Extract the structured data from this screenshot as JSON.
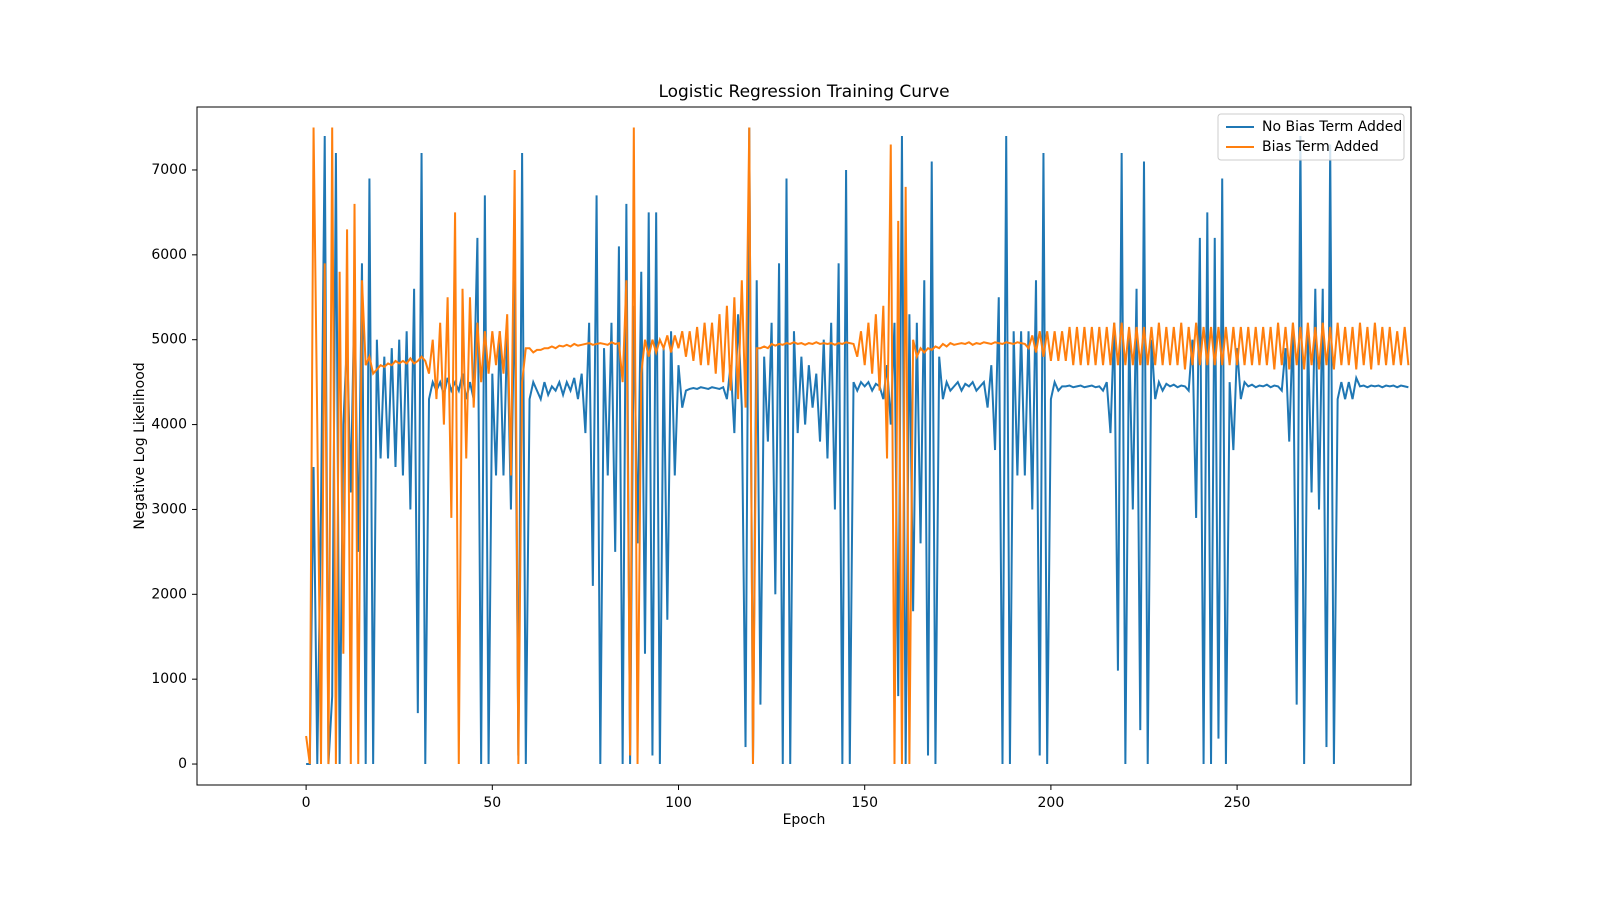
{
  "chart_data": {
    "type": "line",
    "title": "Logistic Regression Training Curve",
    "xlabel": "Epoch",
    "ylabel": "Negative Log Likelihood",
    "x": [
      0,
      1,
      2,
      3,
      4,
      5,
      6,
      7,
      8,
      9,
      10,
      11,
      12,
      13,
      14,
      15,
      16,
      17,
      18,
      19,
      20,
      21,
      22,
      23,
      24,
      25,
      26,
      27,
      28,
      29,
      30,
      31,
      32,
      33,
      34,
      35,
      36,
      37,
      38,
      39,
      40,
      41,
      42,
      43,
      44,
      45,
      46,
      47,
      48,
      49,
      50,
      51,
      52,
      53,
      54,
      55,
      56,
      57,
      58,
      59,
      60,
      61,
      62,
      63,
      64,
      65,
      66,
      67,
      68,
      69,
      70,
      71,
      72,
      73,
      74,
      75,
      76,
      77,
      78,
      79,
      80,
      81,
      82,
      83,
      84,
      85,
      86,
      87,
      88,
      89,
      90,
      91,
      92,
      93,
      94,
      95,
      96,
      97,
      98,
      99,
      100,
      101,
      102,
      103,
      104,
      105,
      106,
      107,
      108,
      109,
      110,
      111,
      112,
      113,
      114,
      115,
      116,
      117,
      118,
      119,
      120,
      121,
      122,
      123,
      124,
      125,
      126,
      127,
      128,
      129,
      130,
      131,
      132,
      133,
      134,
      135,
      136,
      137,
      138,
      139,
      140,
      141,
      142,
      143,
      144,
      145,
      146,
      147,
      148,
      149,
      150,
      151,
      152,
      153,
      154,
      155,
      156,
      157,
      158,
      159,
      160,
      161,
      162,
      163,
      164,
      165,
      166,
      167,
      168,
      169,
      170,
      171,
      172,
      173,
      174,
      175,
      176,
      177,
      178,
      179,
      180,
      181,
      182,
      183,
      184,
      185,
      186,
      187,
      188,
      189,
      190,
      191,
      192,
      193,
      194,
      195,
      196,
      197,
      198,
      199,
      200,
      201,
      202,
      203,
      204,
      205,
      206,
      207,
      208,
      209,
      210,
      211,
      212,
      213,
      214,
      215,
      216,
      217,
      218,
      219,
      220,
      221,
      222,
      223,
      224,
      225,
      226,
      227,
      228,
      229,
      230,
      231,
      232,
      233,
      234,
      235,
      236,
      237,
      238,
      239,
      240,
      241,
      242,
      243,
      244,
      245,
      246,
      247,
      248,
      249,
      250,
      251,
      252,
      253,
      254,
      255,
      256,
      257,
      258,
      259,
      260,
      261,
      262,
      263,
      264,
      265,
      266,
      267,
      268,
      269,
      270,
      271,
      272,
      273,
      274,
      275,
      276,
      277,
      278,
      279,
      280,
      281,
      282,
      283,
      284,
      285,
      286,
      287,
      288,
      289,
      290,
      291,
      292,
      293,
      294,
      295,
      296
    ],
    "series": [
      {
        "name": "No Bias Term Added",
        "color": "#1f77b4",
        "values": [
          0,
          0,
          3500,
          0,
          3000,
          7400,
          0,
          800,
          7200,
          0,
          4000,
          5000,
          3200,
          5600,
          2500,
          5900,
          0,
          6900,
          0,
          5000,
          3600,
          4800,
          3600,
          4900,
          3500,
          5000,
          3400,
          5100,
          3000,
          5600,
          600,
          7200,
          0,
          4300,
          4500,
          4400,
          4500,
          4350,
          4550,
          4400,
          4500,
          4400,
          4600,
          4300,
          4500,
          4300,
          6200,
          0,
          6700,
          0,
          4600,
          3400,
          5100,
          3400,
          5100,
          3000,
          5700,
          100,
          7200,
          0,
          4300,
          4500,
          4400,
          4300,
          4500,
          4350,
          4450,
          4400,
          4500,
          4350,
          4500,
          4400,
          4550,
          4300,
          4600,
          3900,
          5200,
          2100,
          6700,
          0,
          4900,
          3400,
          5200,
          2500,
          6100,
          0,
          6600,
          0,
          5400,
          2600,
          5800,
          1300,
          6500,
          100,
          6500,
          0,
          4900,
          1700,
          5100,
          3400,
          4700,
          4200,
          4400,
          4420,
          4430,
          4420,
          4440,
          4430,
          4420,
          4440,
          4430,
          4420,
          4440,
          4300,
          4700,
          3900,
          5300,
          4200,
          200,
          7500,
          0,
          5700,
          700,
          4800,
          3800,
          5200,
          2000,
          5900,
          0,
          6900,
          0,
          5100,
          3900,
          4800,
          4000,
          4700,
          4200,
          4600,
          3800,
          5000,
          3600,
          5200,
          3000,
          5900,
          0,
          7000,
          0,
          4500,
          4400,
          4500,
          4450,
          4500,
          4400,
          4480,
          4450,
          4300,
          4700,
          4000,
          5200,
          800,
          7400,
          0,
          5300,
          1800,
          5200,
          2600,
          5700,
          100,
          7100,
          0,
          4800,
          4300,
          4500,
          4400,
          4450,
          4500,
          4400,
          4480,
          4450,
          4500,
          4400,
          4450,
          4500,
          4200,
          4700,
          3700,
          5500,
          0,
          7400,
          0,
          5100,
          3400,
          5100,
          3400,
          5100,
          3000,
          5700,
          100,
          7200,
          0,
          4300,
          4500,
          4400,
          4450,
          4450,
          4460,
          4440,
          4450,
          4460,
          4440,
          4450,
          4460,
          4440,
          4450,
          4400,
          4500,
          3900,
          5200,
          1100,
          7200,
          0,
          5100,
          3000,
          5600,
          400,
          7100,
          0,
          5000,
          4300,
          4500,
          4400,
          4480,
          4450,
          4470,
          4440,
          4460,
          4450,
          4400,
          5000,
          2900,
          6200,
          0,
          6500,
          0,
          6200,
          300,
          6900,
          0,
          4500,
          3700,
          4900,
          4300,
          4500,
          4450,
          4470,
          4440,
          4460,
          4450,
          4470,
          4440,
          4460,
          4450,
          4400,
          4900,
          3800,
          5200,
          700,
          7400,
          0,
          5100,
          3200,
          5600,
          3000,
          5600,
          200,
          7300,
          0,
          4300,
          4500,
          4300,
          4500,
          4300,
          4550,
          4450,
          4460,
          4440,
          4460,
          4450,
          4460,
          4440,
          4460,
          4450,
          4460,
          4440,
          4460,
          4450,
          4440
        ]
      },
      {
        "name": "Bias Term Added",
        "color": "#ff7f0e",
        "values": [
          330,
          0,
          7500,
          4000,
          0,
          5900,
          0,
          7500,
          0,
          5800,
          1300,
          6300,
          0,
          6600,
          0,
          5700,
          4700,
          4800,
          4600,
          4650,
          4700,
          4680,
          4720,
          4700,
          4750,
          4720,
          4750,
          4720,
          4780,
          4720,
          4750,
          4800,
          4750,
          4600,
          5000,
          4300,
          5200,
          4000,
          5500,
          2900,
          6500,
          0,
          5600,
          3600,
          5500,
          4200,
          5200,
          4500,
          5100,
          4600,
          5100,
          4700,
          5100,
          4600,
          5300,
          3400,
          7000,
          0,
          4500,
          4900,
          4900,
          4850,
          4880,
          4880,
          4900,
          4900,
          4920,
          4900,
          4930,
          4920,
          4940,
          4920,
          4950,
          4930,
          4940,
          4950,
          4960,
          4940,
          4950,
          4960,
          4950,
          4940,
          4970,
          4950,
          4960,
          4500,
          5700,
          100,
          7500,
          0,
          4600,
          5000,
          4800,
          5000,
          4850,
          5000,
          4900,
          5050,
          4850,
          5050,
          4900,
          5100,
          4800,
          5100,
          4750,
          5150,
          4700,
          5200,
          4700,
          5200,
          4600,
          5300,
          4500,
          5400,
          4400,
          5500,
          4300,
          5700,
          4200,
          7500,
          0,
          4900,
          4900,
          4920,
          4900,
          4950,
          4930,
          4950,
          4940,
          4960,
          4950,
          4970,
          4950,
          4960,
          4940,
          4960,
          4950,
          4970,
          4950,
          4960,
          4950,
          4960,
          4940,
          4960,
          4950,
          4970,
          4960,
          4950,
          4800,
          5100,
          4700,
          5200,
          4600,
          5300,
          4400,
          5400,
          3600,
          7300,
          0,
          6400,
          0,
          6800,
          0,
          5000,
          4800,
          4900,
          4850,
          4900,
          4880,
          4920,
          4900,
          4950,
          4920,
          4960,
          4940,
          4950,
          4960,
          4950,
          4970,
          4940,
          4960,
          4950,
          4970,
          4960,
          4950,
          4970,
          4960,
          4950,
          4970,
          4960,
          4950,
          4970,
          4960,
          4950,
          4900,
          5050,
          4850,
          5100,
          4800,
          5100,
          4750,
          5100,
          4750,
          5100,
          4750,
          5150,
          4700,
          5150,
          4700,
          5150,
          4700,
          5150,
          4700,
          5150,
          4700,
          5150,
          4700,
          5200,
          4700,
          5200,
          4700,
          5150,
          4700,
          5150,
          4700,
          5150,
          4700,
          5150,
          4700,
          5200,
          4700,
          5150,
          4700,
          5150,
          4700,
          5200,
          4650,
          5150,
          4700,
          5200,
          4700,
          5150,
          4700,
          5150,
          4700,
          5150,
          4700,
          5150,
          4700,
          5150,
          4700,
          5150,
          4700,
          5150,
          4700,
          5150,
          4700,
          5150,
          4700,
          5150,
          4650,
          5200,
          4700,
          5150,
          4650,
          5200,
          4700,
          5150,
          4650,
          5200,
          4700,
          5150,
          4650,
          5200,
          4700,
          5150,
          4650,
          5200,
          4700,
          5150,
          4700,
          5150,
          4650,
          5200,
          4700,
          5150,
          4650,
          5200,
          4700,
          5150,
          4700,
          5150,
          4700,
          5100,
          4700,
          5150,
          4700
        ]
      }
    ],
    "xlim": [
      -29.3,
      296.7
    ],
    "ylim": [
      -247,
      7742
    ],
    "xticks": [
      0,
      50,
      100,
      150,
      200,
      250
    ],
    "yticks": [
      0,
      1000,
      2000,
      3000,
      4000,
      5000,
      6000,
      7000
    ],
    "legend": "upper right"
  }
}
